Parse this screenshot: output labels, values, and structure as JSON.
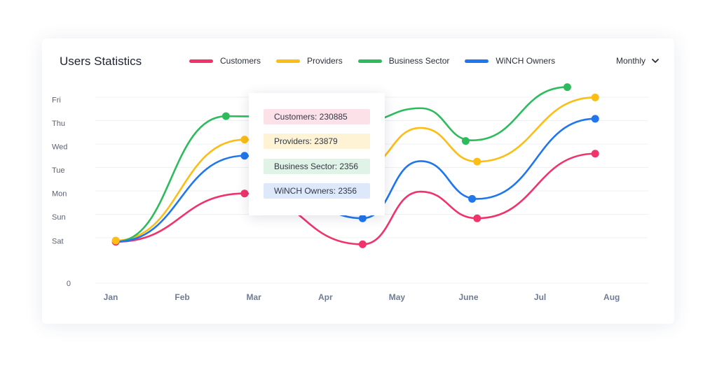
{
  "header": {
    "title": "Users Statistics",
    "period": "Monthly"
  },
  "legend": [
    {
      "name": "Customers",
      "color": "#f0336b"
    },
    {
      "name": "Providers",
      "color": "#fcbd14"
    },
    {
      "name": "Business Sector",
      "color": "#2ebb5e"
    },
    {
      "name": "WiNCH Owners",
      "color": "#1f76ee"
    }
  ],
  "tooltip": {
    "rows": [
      {
        "text": "Customers: 230885",
        "bg": "#fde1e8"
      },
      {
        "text": "Providers: 23879",
        "bg": "#fff3d6"
      },
      {
        "text": "Business Sector: 2356",
        "bg": "#dff3e6"
      },
      {
        "text": "WiNCH Owners: 2356",
        "bg": "#dde9fb"
      }
    ]
  },
  "chart_data": {
    "type": "line",
    "title": "Users Statistics",
    "categories": [
      "Jan",
      "Feb",
      "Mar",
      "Apr",
      "May",
      "June",
      "Jul",
      "Aug"
    ],
    "y_ticks": [
      "0",
      "Sat",
      "Sun",
      "Mon",
      "Tue",
      "Wed",
      "Thu",
      "Fri"
    ],
    "grid": true,
    "legend_position": "top",
    "series": [
      {
        "name": "Customers",
        "color": "#f0336b",
        "points": [
          [
            0.07,
            1.77
          ],
          [
            1.87,
            3.83
          ],
          [
            3.52,
            1.66
          ],
          [
            4.33,
            3.91
          ],
          [
            5.12,
            2.77
          ],
          [
            6.77,
            5.53
          ]
        ]
      },
      {
        "name": "Providers",
        "color": "#fcbd14",
        "points": [
          [
            0.07,
            1.82
          ],
          [
            1.87,
            6.13
          ],
          [
            3.52,
            4.97
          ],
          [
            4.33,
            6.63
          ],
          [
            5.12,
            5.19
          ],
          [
            6.77,
            7.93
          ]
        ]
      },
      {
        "name": "Business Sector",
        "color": "#2ebb5e",
        "points": [
          [
            0.07,
            1.77
          ],
          [
            1.61,
            7.13
          ],
          [
            3.52,
            6.92
          ],
          [
            4.33,
            7.47
          ],
          [
            5.05,
            6.1
          ],
          [
            6.38,
            8.37
          ]
        ]
      },
      {
        "name": "WiNCH Owners",
        "color": "#1f76ee",
        "points": [
          [
            0.07,
            1.77
          ],
          [
            1.87,
            5.44
          ],
          [
            3.52,
            2.77
          ],
          [
            4.33,
            5.21
          ],
          [
            5.12,
            3.6
          ],
          [
            6.77,
            7.02
          ]
        ]
      }
    ],
    "markers": {
      "Customers": [
        [
          0.07,
          1.77
        ],
        [
          1.87,
          3.83
        ],
        [
          3.52,
          1.66
        ],
        [
          5.12,
          2.77
        ],
        [
          6.77,
          5.53
        ]
      ],
      "Providers": [
        [
          0.07,
          1.82
        ],
        [
          1.87,
          6.13
        ],
        [
          5.12,
          5.19
        ],
        [
          6.77,
          7.93
        ]
      ],
      "Business Sector": [
        [
          1.61,
          7.13
        ],
        [
          4.96,
          6.07
        ],
        [
          6.38,
          8.37
        ]
      ],
      "WiNCH Owners": [
        [
          1.87,
          5.44
        ],
        [
          3.52,
          2.77
        ],
        [
          5.05,
          3.6
        ],
        [
          6.77,
          7.02
        ]
      ]
    }
  }
}
